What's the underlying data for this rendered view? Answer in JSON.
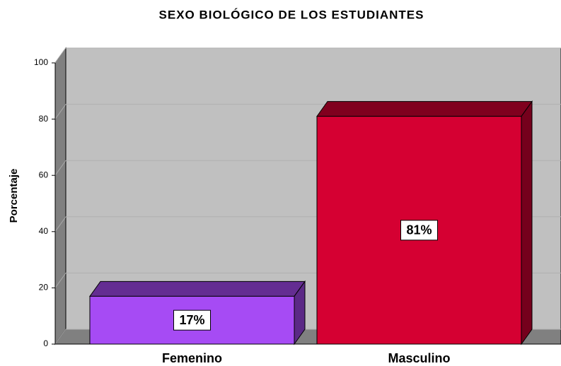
{
  "chart_data": {
    "type": "bar3d",
    "title": "SEXO BIOLÓGICO DE LOS ESTUDIANTES",
    "y_label": "Porcentaje",
    "categories": [
      "Femenino",
      "Masculino"
    ],
    "values": [
      17,
      81
    ],
    "value_labels": [
      "17%",
      "81%"
    ],
    "colors": [
      "#a64bf4",
      "#d50032"
    ],
    "ylim": [
      0,
      100
    ],
    "yticks": [
      0,
      20,
      40,
      60,
      80,
      100
    ],
    "grid": true
  }
}
